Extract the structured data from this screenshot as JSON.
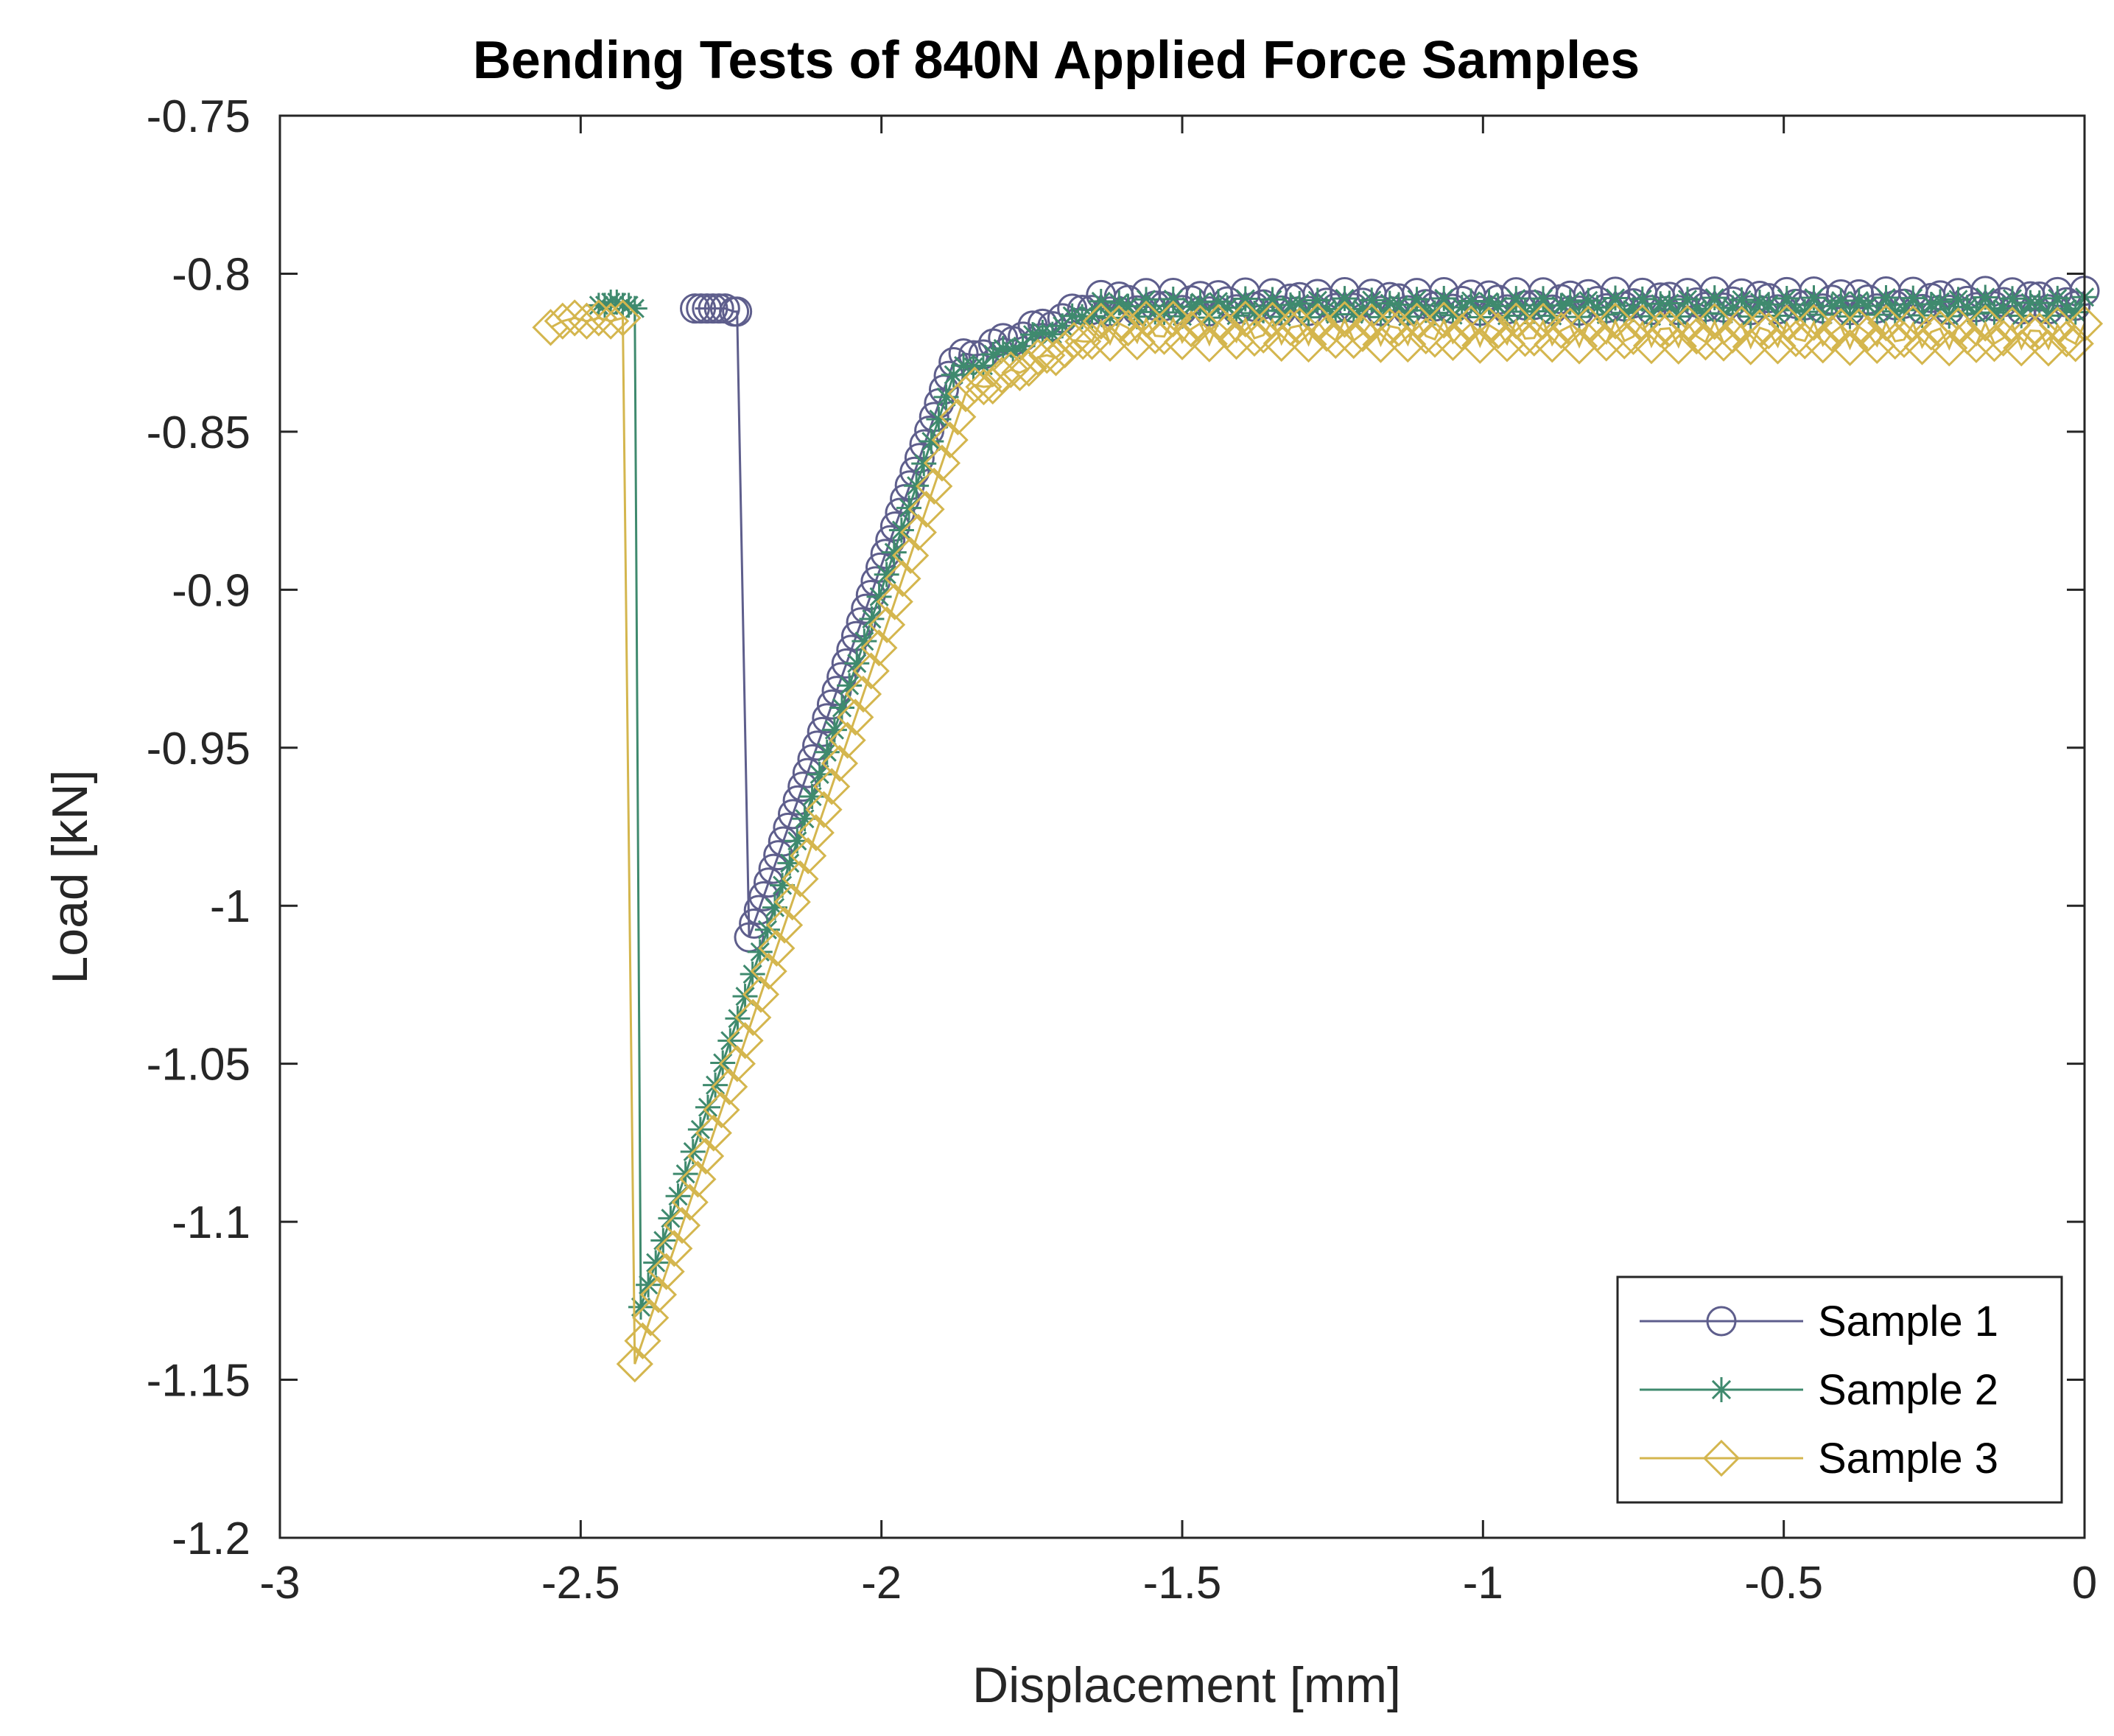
{
  "chart_data": {
    "type": "line",
    "title": "Bending Tests of 840N Applied Force Samples",
    "xlabel": "Displacement [mm]",
    "ylabel": "Load [kN]",
    "xlim": [
      -3,
      0
    ],
    "ylim": [
      -1.2,
      -0.75
    ],
    "xticks": [
      -3,
      -2.5,
      -2,
      -1.5,
      -1,
      -0.5,
      0
    ],
    "xtick_labels": [
      "-3",
      "-2.5",
      "-2",
      "-1.5",
      "-1",
      "-0.5",
      "0"
    ],
    "yticks": [
      -0.75,
      -0.8,
      -0.85,
      -0.9,
      -0.95,
      -1,
      -1.05,
      -1.1,
      -1.15,
      -1.2
    ],
    "ytick_labels": [
      "-0.75",
      "-0.8",
      "-0.85",
      "-0.9",
      "-0.95",
      "-1",
      "-1.05",
      "-1.1",
      "-1.15",
      "-1.2"
    ],
    "grid": false,
    "legend_position": "bottom-right",
    "series": [
      {
        "name": "Sample 1",
        "color": "#5e5e8c",
        "marker": "circle",
        "pre_failure": [
          [
            -2.31,
            -0.811
          ],
          [
            -2.3,
            -0.811
          ],
          [
            -2.29,
            -0.811
          ],
          [
            -2.28,
            -0.811
          ],
          [
            -2.27,
            -0.811
          ],
          [
            -2.26,
            -0.811
          ],
          [
            -2.245,
            -0.812
          ],
          [
            -2.24,
            -0.812
          ]
        ],
        "failure_point": [
          -2.22,
          -1.01
        ],
        "ramp_end": [
          -1.88,
          -0.828
        ],
        "knee": [
          -1.65,
          -0.81
        ],
        "plateau_end": [
          0,
          -0.808
        ],
        "plateau_level": -0.809,
        "plateau_amplitude": 0.003
      },
      {
        "name": "Sample 2",
        "color": "#3f8a6e",
        "marker": "star",
        "pre_failure": [
          [
            -2.47,
            -0.81
          ],
          [
            -2.46,
            -0.81
          ],
          [
            -2.45,
            -0.809
          ],
          [
            -2.44,
            -0.809
          ],
          [
            -2.43,
            -0.81
          ],
          [
            -2.42,
            -0.81
          ],
          [
            -2.41,
            -0.811
          ]
        ],
        "failure_point": [
          -2.4,
          -1.127
        ],
        "ramp_end": [
          -1.88,
          -0.832
        ],
        "knee": [
          -1.65,
          -0.812
        ],
        "plateau_end": [
          0,
          -0.81
        ],
        "plateau_level": -0.811,
        "plateau_amplitude": 0.003
      },
      {
        "name": "Sample 3",
        "color": "#d4b64e",
        "marker": "diamond",
        "pre_failure": [
          [
            -2.55,
            -0.817
          ],
          [
            -2.53,
            -0.815
          ],
          [
            -2.51,
            -0.814
          ],
          [
            -2.49,
            -0.815
          ],
          [
            -2.47,
            -0.814
          ],
          [
            -2.45,
            -0.815
          ],
          [
            -2.43,
            -0.814
          ]
        ],
        "failure_point": [
          -2.41,
          -1.145
        ],
        "ramp_end": [
          -1.86,
          -0.838
        ],
        "knee": [
          -1.65,
          -0.82
        ],
        "plateau_end": [
          0,
          -0.821
        ],
        "plateau_level": -0.818,
        "plateau_amplitude": 0.004
      }
    ]
  }
}
